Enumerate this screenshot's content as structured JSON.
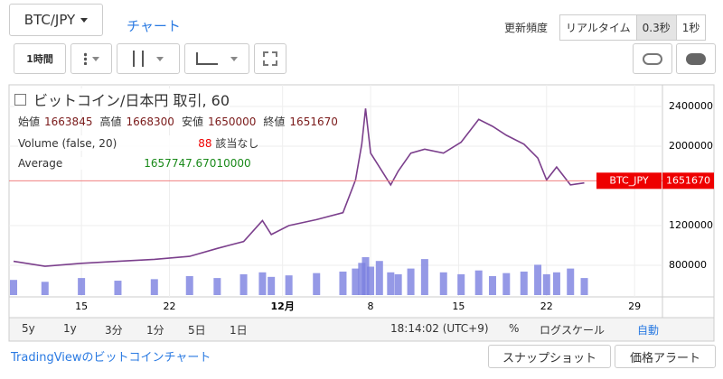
{
  "header": {
    "symbol": "BTC/JPY",
    "tab": "チャート",
    "refresh_label": "更新頻度",
    "refresh_options": [
      "リアルタイム",
      "0.3秒",
      "1秒"
    ]
  },
  "toolbar": {
    "interval": "1時間"
  },
  "chart_data": {
    "type": "line",
    "title": "ビットコイン/日本円 取引, 60",
    "legend": {
      "ohlc": [
        {
          "label": "始値",
          "value": 1663845
        },
        {
          "label": "高値",
          "value": 1668300
        },
        {
          "label": "安値",
          "value": 1650000
        },
        {
          "label": "終値",
          "value": 1651670
        }
      ],
      "volume": {
        "name": "Volume (false, 20)",
        "value": 88,
        "note": "該当なし"
      },
      "average": {
        "name": "Average",
        "value": "1657747.67010000"
      }
    },
    "x": [
      8.6,
      11.1,
      14,
      16.9,
      19.8,
      22.6,
      24.8,
      26.9,
      28.4,
      29.1,
      30.5,
      32.7,
      34.8,
      35.8,
      36.3,
      36.6,
      37,
      37.7,
      38.6,
      39.2,
      40.2,
      41.3,
      42.8,
      44.2,
      45.6,
      46.7,
      47.8,
      49.2,
      50.3,
      51,
      51.8,
      52.9,
      54
    ],
    "series": [
      {
        "name": "BTC_JPY",
        "color": "#7b3f8c",
        "values": [
          840000,
          790000,
          820000,
          840000,
          860000,
          890000,
          970000,
          1040000,
          1250000,
          1110000,
          1200000,
          1260000,
          1330000,
          1660000,
          2020000,
          2380000,
          1930000,
          1790000,
          1610000,
          1750000,
          1930000,
          1970000,
          1930000,
          2040000,
          2270000,
          2200000,
          2110000,
          2020000,
          1880000,
          1660000,
          1790000,
          1610000,
          1630000
        ]
      },
      {
        "name": "Volume",
        "color": "#7b7fe0",
        "values": [
          40,
          35,
          45,
          38,
          42,
          50,
          45,
          55,
          60,
          48,
          52,
          58,
          62,
          70,
          85,
          100,
          75,
          90,
          60,
          55,
          70,
          95,
          60,
          55,
          65,
          50,
          58,
          62,
          80,
          55,
          60,
          70,
          45
        ]
      }
    ],
    "xlim": [
      8.6,
      60
    ],
    "ylim": [
      500000,
      2600000
    ],
    "xticks": [
      {
        "value": 14,
        "label": "15"
      },
      {
        "value": 21,
        "label": "22"
      },
      {
        "value": 30,
        "label": "12月"
      },
      {
        "value": 37,
        "label": "8"
      },
      {
        "value": 44,
        "label": "15"
      },
      {
        "value": 51,
        "label": "22"
      },
      {
        "value": 58,
        "label": "29"
      }
    ],
    "yticks": [
      800000,
      1200000,
      2000000,
      2400000
    ],
    "grid": true
  },
  "bottom_bar": {
    "ranges": [
      "5y",
      "1y",
      "3分",
      "1分",
      "5日",
      "1日"
    ],
    "time": "18:14:02 (UTC+9)",
    "percent": "%",
    "log": "ログスケール",
    "auto": "自動"
  },
  "footer": {
    "link": "TradingViewのビットコインチャート",
    "snapshot": "スナップショット",
    "alert": "価格アラート"
  }
}
